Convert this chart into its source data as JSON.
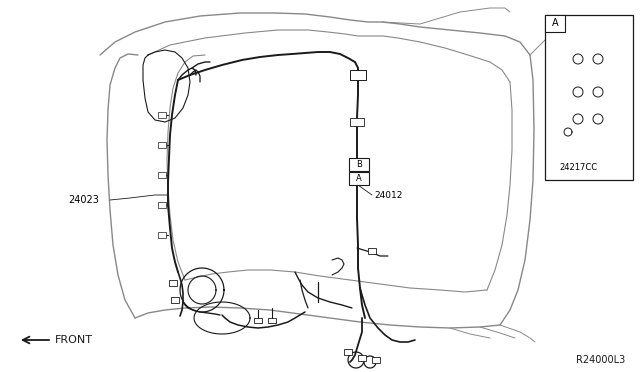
{
  "bg_color": "#ffffff",
  "line_color": "#1a1a1a",
  "gray_color": "#888888",
  "label_24023": "24023",
  "label_24012": "24012",
  "label_24217cc": "24217CC",
  "label_front": "FRONT",
  "label_ref_A": "A",
  "label_ref_B": "B",
  "label_callout_A": "A",
  "ref_code": "R24000L3"
}
